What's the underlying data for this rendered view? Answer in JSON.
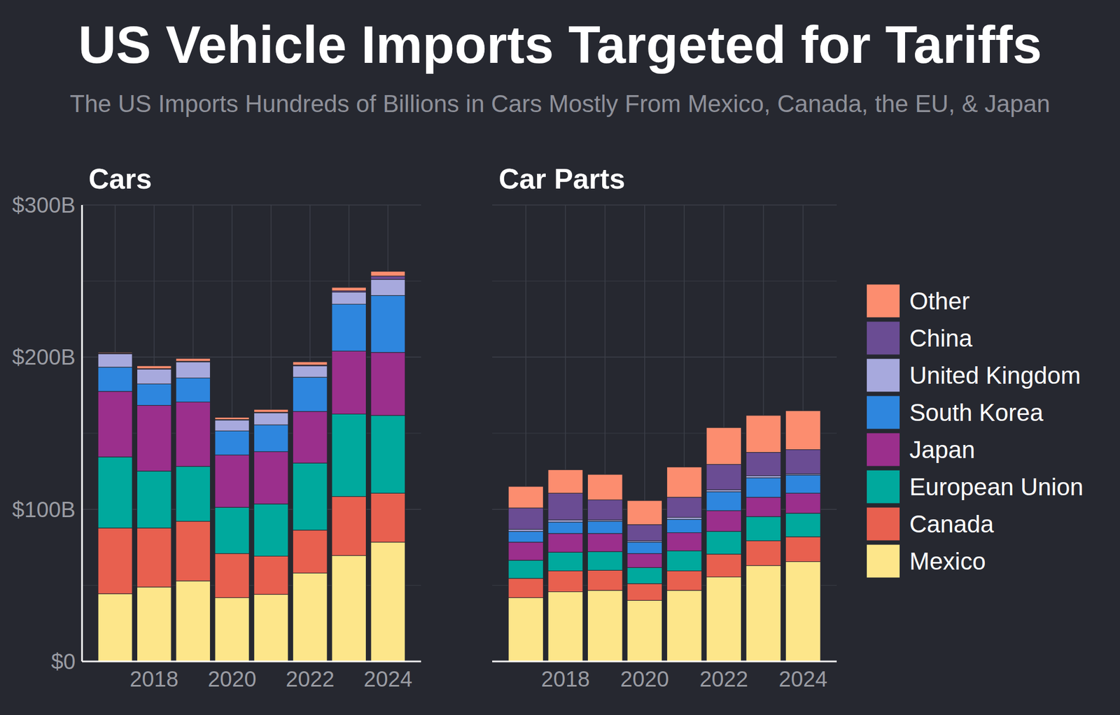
{
  "title": "US Vehicle Imports Targeted for Tariffs",
  "subtitle": "The US Imports Hundreds of Billions in Cars Mostly From Mexico, Canada, the EU, & Japan",
  "chart_data": [
    {
      "type": "bar",
      "title": "Cars",
      "stacked": true,
      "grid": true,
      "legend": "right",
      "categories": [
        null,
        "2018",
        null,
        "2020",
        null,
        "2022",
        null,
        "2024"
      ],
      "ylim": [
        0,
        300
      ],
      "yticks": [
        {
          "value": 0,
          "label": "$0"
        },
        {
          "value": 100,
          "label": "$100B"
        },
        {
          "value": 200,
          "label": "$200B"
        },
        {
          "value": 300,
          "label": "$300B"
        }
      ],
      "series": [
        {
          "name": "Mexico",
          "color": "#fde68a",
          "values": [
            44.5,
            48.9,
            52.9,
            41.9,
            44.1,
            58.1,
            69.6,
            78.4
          ]
        },
        {
          "name": "Canada",
          "color": "#e8604f",
          "values": [
            43.2,
            38.8,
            39.2,
            29.0,
            25.1,
            28.2,
            38.8,
            32.2
          ]
        },
        {
          "name": "European Union",
          "color": "#00a99d",
          "values": [
            46.7,
            37.4,
            36.1,
            30.4,
            34.3,
            44.1,
            54.2,
            51.1
          ]
        },
        {
          "name": "Japan",
          "color": "#9b2f8c",
          "values": [
            43.1,
            43.2,
            42.3,
            34.4,
            34.4,
            33.9,
            41.4,
            41.4
          ]
        },
        {
          "name": "South Korea",
          "color": "#2e86de",
          "values": [
            15.9,
            14.1,
            15.8,
            15.8,
            17.6,
            22.5,
            30.8,
            37.4
          ]
        },
        {
          "name": "United Kingdom",
          "color": "#a7a9dd",
          "values": [
            8.8,
            9.7,
            10.6,
            7.1,
            7.9,
            7.5,
            7.9,
            10.6
          ]
        },
        {
          "name": "China",
          "color": "#6a4c93",
          "values": [
            0.4,
            0.4,
            0.4,
            0.4,
            0.4,
            0.5,
            0.9,
            2.2
          ]
        },
        {
          "name": "Other",
          "color": "#fc8d6f",
          "values": [
            0.5,
            1.8,
            1.8,
            1.4,
            1.8,
            2.1,
            2.2,
            3.1
          ]
        }
      ]
    },
    {
      "type": "bar",
      "title": "Car Parts",
      "stacked": true,
      "grid": true,
      "tick_labels": "x",
      "categories": [
        null,
        "2018",
        null,
        "2020",
        null,
        "2022",
        null,
        "2024"
      ],
      "ylim": [
        0,
        300
      ],
      "yticks": [
        0,
        100,
        200,
        300
      ],
      "series": [
        {
          "name": "Mexico",
          "color": "#fde68a",
          "values": [
            41.9,
            45.8,
            46.7,
            40.1,
            46.7,
            55.5,
            63.0,
            65.6
          ]
        },
        {
          "name": "Canada",
          "color": "#e8604f",
          "values": [
            12.7,
            13.7,
            13.2,
            11.0,
            12.8,
            15.0,
            16.3,
            16.3
          ]
        },
        {
          "name": "European Union",
          "color": "#00a99d",
          "values": [
            11.9,
            12.3,
            12.3,
            10.6,
            13.2,
            15.0,
            15.9,
            15.5
          ]
        },
        {
          "name": "Japan",
          "color": "#9b2f8c",
          "values": [
            11.9,
            12.3,
            11.9,
            9.2,
            11.9,
            13.6,
            12.7,
            13.2
          ]
        },
        {
          "name": "South Korea",
          "color": "#2e86de",
          "values": [
            7.1,
            7.5,
            8.0,
            7.5,
            8.8,
            12.4,
            12.8,
            11.9
          ]
        },
        {
          "name": "United Kingdom",
          "color": "#a7a9dd",
          "values": [
            1.3,
            1.4,
            0.9,
            0.9,
            1.3,
            1.3,
            1.3,
            0.8
          ]
        },
        {
          "name": "China",
          "color": "#6a4c93",
          "values": [
            14.1,
            17.6,
            13.2,
            10.6,
            13.2,
            16.7,
            15.4,
            15.9
          ]
        },
        {
          "name": "Other",
          "color": "#fc8d6f",
          "values": [
            14.1,
            15.4,
            16.7,
            15.8,
            19.9,
            24.2,
            24.3,
            25.6
          ]
        }
      ]
    }
  ]
}
